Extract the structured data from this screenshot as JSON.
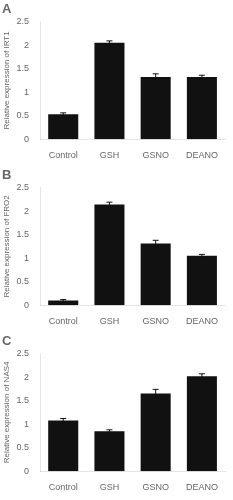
{
  "chart_data": [
    {
      "type": "bar",
      "title": "A",
      "ylabel": "Relative expression of IRT1",
      "categories": [
        "Control",
        "GSH",
        "GSNO",
        "DEANO"
      ],
      "values": [
        0.53,
        2.05,
        1.32,
        1.32
      ],
      "errors": [
        0.03,
        0.04,
        0.07,
        0.04
      ],
      "color": "#111111",
      "ylim": [
        0,
        2.5
      ],
      "yticks": [
        0.0,
        0.5,
        1.0,
        1.5,
        2.0,
        2.5
      ],
      "grid": false
    },
    {
      "type": "bar",
      "title": "B",
      "ylabel": "Relative expression of FRO2",
      "categories": [
        "Control",
        "GSH",
        "GSNO",
        "DEANO"
      ],
      "values": [
        0.1,
        2.14,
        1.31,
        1.05
      ],
      "errors": [
        0.02,
        0.05,
        0.07,
        0.03
      ],
      "color": "#111111",
      "ylim": [
        0,
        2.5
      ],
      "yticks": [
        0.0,
        0.5,
        1.0,
        1.5,
        2.0,
        2.5
      ],
      "grid": false
    },
    {
      "type": "bar",
      "title": "C",
      "ylabel": "Relative expression of NAS4",
      "categories": [
        "Control",
        "GSH",
        "GSNO",
        "DEANO"
      ],
      "values": [
        1.08,
        0.85,
        1.65,
        2.02
      ],
      "errors": [
        0.04,
        0.03,
        0.09,
        0.05
      ],
      "color": "#111111",
      "ylim": [
        0,
        2.5
      ],
      "yticks": [
        0.0,
        0.5,
        1.0,
        1.5,
        2.0,
        2.5
      ],
      "grid": false
    }
  ]
}
